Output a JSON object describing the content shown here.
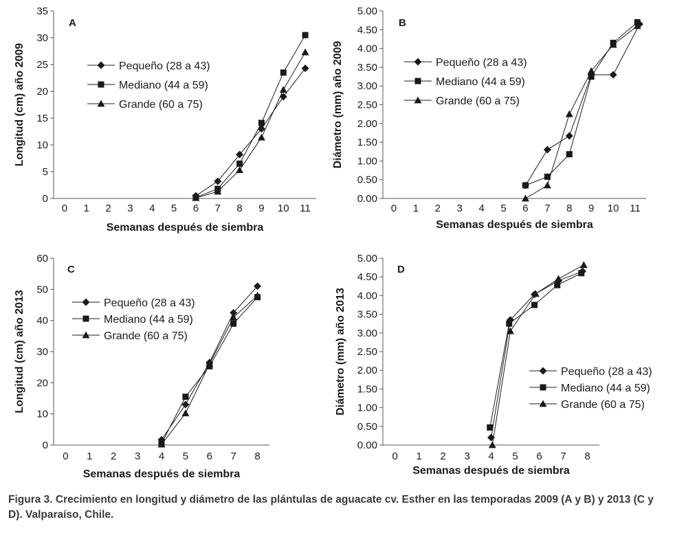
{
  "caption": "Figura 3. Crecimiento en longitud y diámetro de las plántulas de aguacate cv. Esther en las temporadas 2009 (A y B) y 2013 (C y D). Valparaíso, Chile.",
  "chart_data": [
    {
      "type": "line",
      "panel_label": "A",
      "xlabel": "Semanas después de siembra",
      "ylabel": "Longitud (cm) año 2009",
      "xticks": [
        "0",
        "1",
        "2",
        "3",
        "4",
        "5",
        "6",
        "7",
        "8",
        "9",
        "10",
        "11"
      ],
      "yticks": [
        "0",
        "5",
        "10",
        "15",
        "20",
        "25",
        "30",
        "35"
      ],
      "xlim": [
        -0.5,
        11.5
      ],
      "ylim": [
        0,
        35
      ],
      "legend_position": "upper-left",
      "series": [
        {
          "name": "Pequeño (28 a 43)",
          "marker": "diamond",
          "x": [
            6,
            7,
            8,
            9,
            10,
            11
          ],
          "y": [
            0.5,
            3.2,
            8.2,
            13,
            19,
            24.3
          ]
        },
        {
          "name": "Mediano (44 a 59)",
          "marker": "square",
          "x": [
            6,
            7,
            8,
            9,
            10,
            11
          ],
          "y": [
            0.2,
            1.8,
            6.5,
            14.1,
            23.5,
            30.5
          ]
        },
        {
          "name": "Grande (60 a 75)",
          "marker": "triangle",
          "x": [
            6,
            7,
            8,
            9,
            10,
            11
          ],
          "y": [
            0.1,
            1.3,
            5.3,
            11.4,
            20.3,
            27.3
          ]
        }
      ]
    },
    {
      "type": "line",
      "panel_label": "B",
      "xlabel": "Semanas después de siembra",
      "ylabel": "Diámetro (mm) año 2009",
      "xticks": [
        "0",
        "1",
        "2",
        "3",
        "4",
        "5",
        "6",
        "7",
        "8",
        "9",
        "10",
        "11"
      ],
      "yticks": [
        "0.00",
        "0.50",
        "1.00",
        "1.50",
        "2.00",
        "2.50",
        "3.00",
        "3.50",
        "4.00",
        "4.50",
        "5.00"
      ],
      "xlim": [
        -0.5,
        11.5
      ],
      "ylim": [
        0,
        5
      ],
      "legend_position": "upper-left",
      "series": [
        {
          "name": "Pequeño (28 a 43)",
          "marker": "diamond",
          "x": [
            6,
            7,
            8,
            9,
            10,
            11.2
          ],
          "y": [
            0.35,
            1.3,
            1.67,
            3.3,
            3.3,
            4.65
          ]
        },
        {
          "name": "Mediano (44 a 59)",
          "marker": "square",
          "x": [
            6,
            7,
            8,
            9,
            10,
            11.1
          ],
          "y": [
            0.35,
            0.58,
            1.18,
            3.25,
            4.15,
            4.7
          ]
        },
        {
          "name": "Grande (60 a 75)",
          "marker": "triangle",
          "x": [
            6,
            7,
            8,
            9,
            10,
            11.1
          ],
          "y": [
            0,
            0.35,
            2.25,
            3.4,
            4.1,
            4.6
          ]
        }
      ]
    },
    {
      "type": "line",
      "panel_label": "C",
      "xlabel": "Semanas después de siembra",
      "ylabel": "Longitud (cm) año 2013",
      "xticks": [
        "0",
        "1",
        "2",
        "3",
        "4",
        "5",
        "6",
        "7",
        "8"
      ],
      "yticks": [
        "0",
        "10",
        "20",
        "30",
        "40",
        "50",
        "60"
      ],
      "xlim": [
        -0.5,
        8.5
      ],
      "ylim": [
        0,
        60
      ],
      "legend_position": "upper-left",
      "series": [
        {
          "name": "Pequeño (28 a 43)",
          "marker": "diamond",
          "x": [
            4,
            5,
            6,
            7,
            8
          ],
          "y": [
            1.7,
            13,
            26.5,
            42.5,
            51
          ]
        },
        {
          "name": "Mediano (44 a 59)",
          "marker": "square",
          "x": [
            4,
            5,
            6,
            7,
            8
          ],
          "y": [
            0.5,
            15.5,
            25.3,
            39,
            47.5
          ]
        },
        {
          "name": "Grande (60 a 75)",
          "marker": "triangle",
          "x": [
            4,
            5,
            6,
            7,
            8
          ],
          "y": [
            0.2,
            10.2,
            26,
            41,
            48
          ]
        }
      ]
    },
    {
      "type": "line",
      "panel_label": "D",
      "xlabel": "Semanas después de siembra",
      "ylabel": "Diámetro (mm) año 2013",
      "xticks": [
        "0",
        "1",
        "2",
        "3",
        "4",
        "5",
        "6",
        "7",
        "8"
      ],
      "yticks": [
        "0.00",
        "0.50",
        "1.00",
        "1.50",
        "2.00",
        "2.50",
        "3.00",
        "3.50",
        "4.00",
        "4.50",
        "5.00"
      ],
      "xlim": [
        -0.5,
        8.5
      ],
      "ylim": [
        0,
        5
      ],
      "legend_position": "lower-right",
      "series": [
        {
          "name": "Pequeño (28 a 43)",
          "marker": "diamond",
          "x": [
            4,
            4.8,
            5.8,
            6.8,
            7.8
          ],
          "y": [
            0.2,
            3.35,
            4.03,
            4.4,
            4.65
          ]
        },
        {
          "name": "Mediano (44 a 59)",
          "marker": "square",
          "x": [
            3.95,
            4.75,
            5.8,
            6.75,
            7.75
          ],
          "y": [
            0.47,
            3.25,
            3.75,
            4.28,
            4.6
          ]
        },
        {
          "name": "Grande (60 a 75)",
          "marker": "triangle",
          "x": [
            4.05,
            4.8,
            5.85,
            6.8,
            7.85
          ],
          "y": [
            0,
            3.05,
            4.05,
            4.45,
            4.82
          ]
        }
      ]
    }
  ]
}
